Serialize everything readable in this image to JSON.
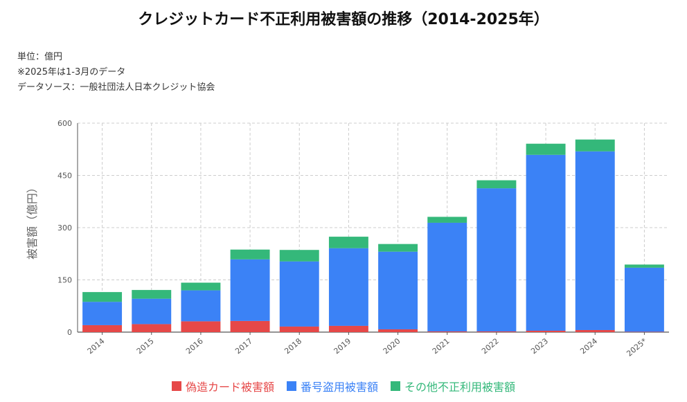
{
  "title": "クレジットカード不正利用被害額の推移（2014-2025年）",
  "notes": {
    "unit": "単位：億円",
    "note": "※2025年は1-3月のデータ",
    "source": "データソース：一般社団法人日本クレジット協会"
  },
  "colors": {
    "forged": "#e64848",
    "number_theft": "#3b82f6",
    "other": "#34b87a",
    "grid": "#cccccc",
    "axis": "#555555"
  },
  "chart_data": {
    "type": "bar",
    "stacked": true,
    "categories": [
      "2014",
      "2015",
      "2016",
      "2017",
      "2018",
      "2019",
      "2020",
      "2021",
      "2022",
      "2023",
      "2024",
      "2025*"
    ],
    "series": [
      {
        "name": "偽造カード被害額",
        "values": [
          20,
          23,
          31,
          32,
          16,
          18,
          8,
          2,
          2,
          4,
          6,
          1
        ]
      },
      {
        "name": "番号盗用被害額",
        "values": [
          67,
          73,
          89,
          177,
          187,
          223,
          223,
          312,
          411,
          505,
          513,
          184
        ]
      },
      {
        "name": "その他不正利用被害額",
        "values": [
          28,
          25,
          22,
          28,
          33,
          33,
          22,
          17,
          23,
          32,
          34,
          9
        ]
      }
    ],
    "ylabel": "被害額（億円）",
    "ylim": [
      0,
      600
    ],
    "yticks": [
      0,
      150,
      300,
      450,
      600
    ],
    "grid": true,
    "legend_position": "bottom"
  }
}
